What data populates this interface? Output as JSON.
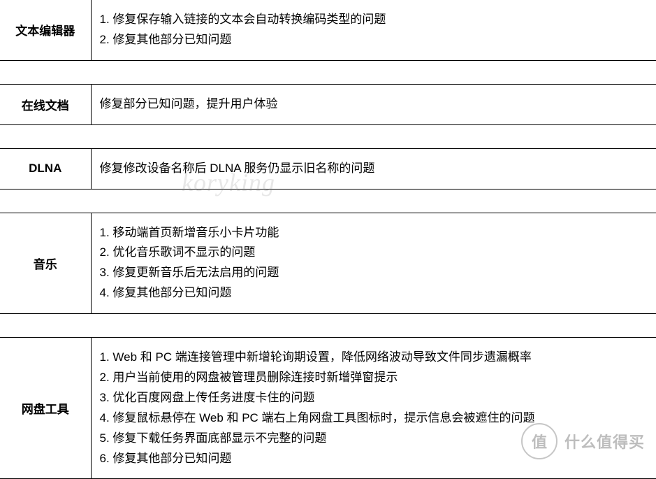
{
  "watermark": "koryking",
  "rows": [
    {
      "label": "文本编辑器",
      "items": [
        "1. 修复保存输入链接的文本会自动转换编码类型的问题",
        "2. 修复其他部分已知问题"
      ]
    },
    {
      "label": "在线文档",
      "items": [
        "修复部分已知问题，提升用户体验"
      ]
    },
    {
      "label": "DLNA",
      "items": [
        "修复修改设备名称后 DLNA 服务仍显示旧名称的问题"
      ]
    },
    {
      "label": "音乐",
      "items": [
        "1. 移动端首页新增音乐小卡片功能",
        "2. 优化音乐歌词不显示的问题",
        "3. 修复更新音乐后无法启用的问题",
        "4. 修复其他部分已知问题"
      ]
    },
    {
      "label": "网盘工具",
      "items": [
        "1. Web 和 PC 端连接管理中新增轮询期设置，降低网络波动导致文件同步遗漏概率",
        "2. 用户当前使用的网盘被管理员删除连接时新增弹窗提示",
        "3. 优化百度网盘上传任务进度卡住的问题",
        "4. 修复鼠标悬停在 Web 和 PC 端右上角网盘工具图标时，提示信息会被遮住的问题",
        "5. 修复下载任务界面底部显示不完整的问题",
        "6. 修复其他部分已知问题"
      ]
    }
  ],
  "badge": {
    "circle": "值",
    "text": "什么值得买"
  }
}
